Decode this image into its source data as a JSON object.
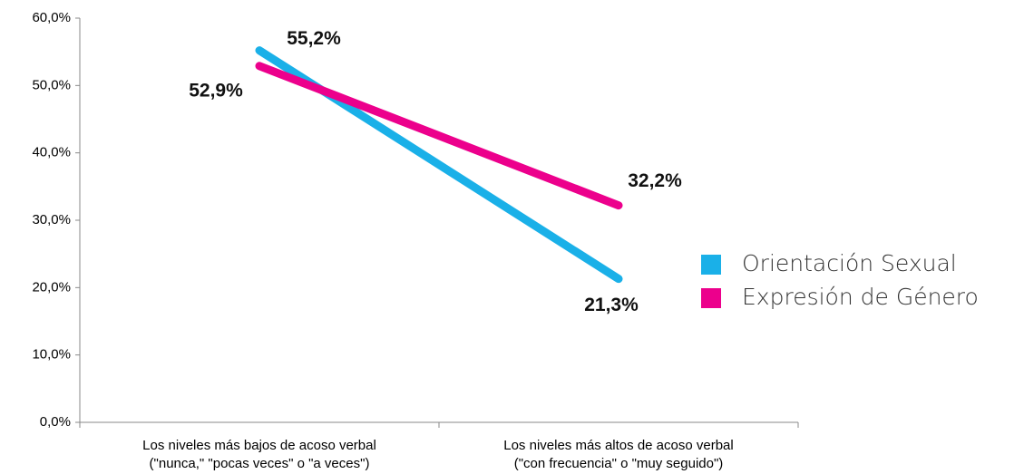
{
  "chart_data": {
    "type": "line",
    "categories": [
      [
        "Los niveles más bajos de acoso verbal",
        "(\"nunca,\" \"pocas veces\" o \"a veces\")"
      ],
      [
        "Los niveles más altos de acoso verbal",
        "(\"con frecuencia\" o \"muy seguido\")"
      ]
    ],
    "series": [
      {
        "name": "Orientación Sexual",
        "color": "#1ab0e8",
        "values": [
          55.2,
          21.3
        ],
        "value_labels": [
          "55,2%",
          "21,3%"
        ]
      },
      {
        "name": "Expresión de Género",
        "color": "#ec008c",
        "values": [
          52.9,
          32.2
        ],
        "value_labels": [
          "52,9%",
          "32,2%"
        ]
      }
    ],
    "ylim": [
      0,
      60
    ],
    "yticks": [
      {
        "value": 0,
        "label": "0,0%"
      },
      {
        "value": 10,
        "label": "10,0%"
      },
      {
        "value": 20,
        "label": "20,0%"
      },
      {
        "value": 30,
        "label": "30,0%"
      },
      {
        "value": 40,
        "label": "40,0%"
      },
      {
        "value": 50,
        "label": "50,0%"
      },
      {
        "value": 60,
        "label": "60,0%"
      }
    ],
    "legend": "right"
  }
}
